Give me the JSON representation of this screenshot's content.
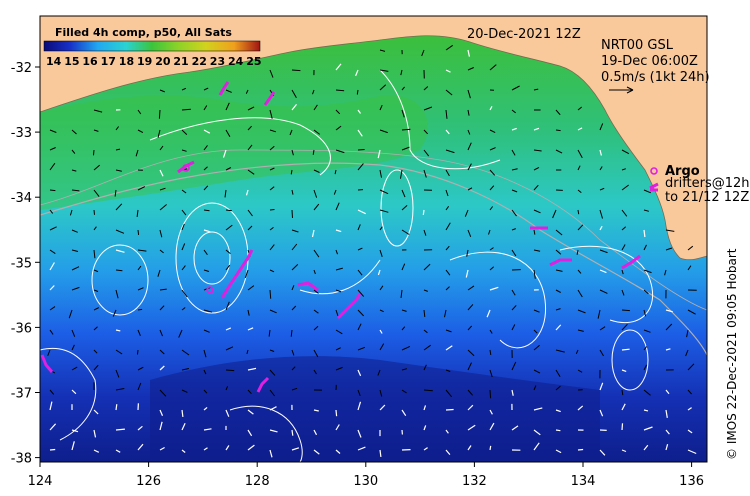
{
  "title": "Filled 4h comp, p50, All Sats",
  "date_label": "20-Dec-2021 12Z",
  "colorbar": {
    "ticks": [
      "14",
      "15",
      "16",
      "17",
      "18",
      "19",
      "20",
      "21",
      "22",
      "23",
      "24",
      "25"
    ],
    "colors": [
      "#0a0a78",
      "#1730c8",
      "#1e6cf0",
      "#22a8f0",
      "#2ad2d2",
      "#36c890",
      "#3cc43c",
      "#8cd228",
      "#d2d21e",
      "#f0a01e",
      "#e6501e",
      "#a01414"
    ]
  },
  "info": {
    "line1": "NRT00 GSL",
    "line2": "19-Dec 06:00Z",
    "line3": "0.5m/s (1kt 24h)"
  },
  "legend": {
    "argo": "Argo",
    "drifters1": "drifters@12h",
    "drifters2": "to 21/12 12Z"
  },
  "axes": {
    "x_ticks": [
      "124",
      "126",
      "128",
      "130",
      "132",
      "134",
      "136"
    ],
    "y_ticks": [
      "-32",
      "-33",
      "-34",
      "-35",
      "-36",
      "-37",
      "-38"
    ]
  },
  "credit": "© IMOS 22-Dec-2021 09:05 Hobart",
  "colors": {
    "land": "#f9c99c",
    "drifter": "#e020e0",
    "contour": "#ffffff"
  }
}
